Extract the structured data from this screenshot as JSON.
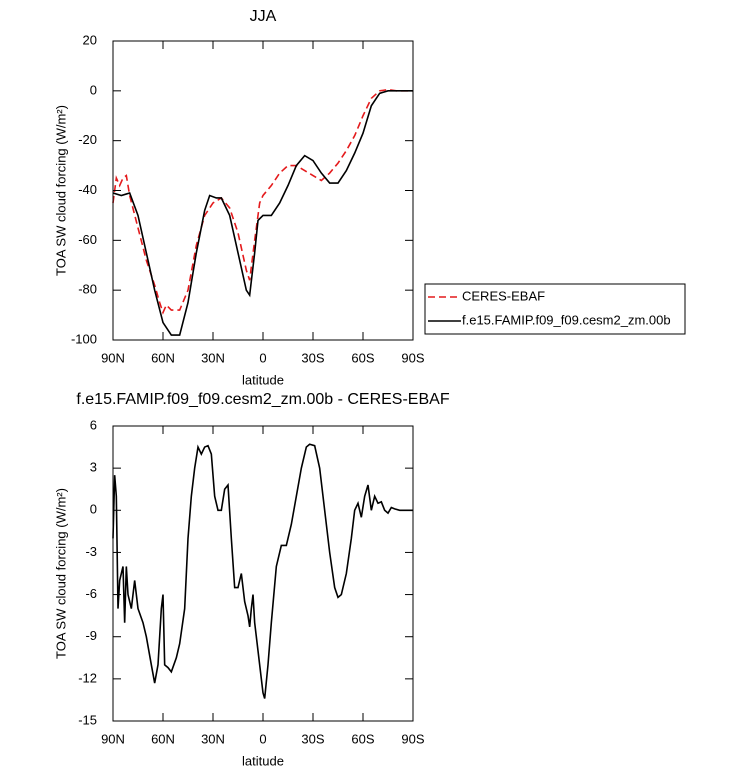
{
  "chart_data": [
    {
      "type": "line",
      "title": "JJA",
      "xlabel": "latitude",
      "ylabel": "TOA SW cloud forcing (W/m²)",
      "xlim": [
        90,
        -90
      ],
      "xticks": [
        {
          "value": 90,
          "label": "90N"
        },
        {
          "value": 60,
          "label": "60N"
        },
        {
          "value": 30,
          "label": "30N"
        },
        0,
        {
          "value": -30,
          "label": "30S"
        },
        {
          "value": -60,
          "label": "60S"
        },
        {
          "value": -90,
          "label": "90S"
        }
      ],
      "ylim": [
        -100,
        20
      ],
      "yticks": [
        20,
        0,
        -20,
        -40,
        -60,
        -80,
        -100
      ],
      "legend": "right",
      "series": [
        {
          "name": "CERES-EBAF",
          "color": "#e41a1c",
          "dash": true,
          "x": [
            90,
            88,
            86,
            84,
            82,
            80,
            75,
            70,
            65,
            62,
            60,
            58,
            55,
            50,
            45,
            40,
            35,
            30,
            25,
            20,
            15,
            10,
            8,
            5,
            2,
            0,
            -5,
            -10,
            -15,
            -20,
            -25,
            -30,
            -35,
            -40,
            -45,
            -50,
            -55,
            -60,
            -65,
            -70,
            -75,
            -80,
            -85,
            -90
          ],
          "values": [
            -45,
            -35,
            -38,
            -35,
            -34,
            -42,
            -55,
            -68,
            -78,
            -85,
            -89,
            -86,
            -88,
            -88,
            -80,
            -62,
            -50,
            -45,
            -43,
            -47,
            -57,
            -72,
            -76,
            -60,
            -45,
            -42,
            -38,
            -33,
            -30,
            -30,
            -32,
            -34,
            -36,
            -33,
            -29,
            -24,
            -18,
            -10,
            -3,
            0,
            0.5,
            0,
            0,
            0
          ]
        },
        {
          "name": "f.e15.FAMIP.f09_f09.cesm2_zm.00b",
          "color": "#000000",
          "dash": false,
          "x": [
            90,
            85,
            80,
            75,
            70,
            65,
            60,
            57,
            55,
            50,
            45,
            40,
            35,
            32,
            28,
            25,
            20,
            15,
            10,
            8,
            5,
            3,
            0,
            -5,
            -10,
            -15,
            -20,
            -25,
            -30,
            -35,
            -40,
            -45,
            -50,
            -55,
            -60,
            -65,
            -70,
            -75,
            -80,
            -85,
            -90
          ],
          "values": [
            -41,
            -42,
            -41,
            -50,
            -65,
            -80,
            -93,
            -96,
            -98,
            -98,
            -85,
            -65,
            -48,
            -42,
            -43,
            -43,
            -50,
            -65,
            -80,
            -82,
            -65,
            -52,
            -50,
            -50,
            -45,
            -38,
            -30,
            -26,
            -28,
            -33,
            -37,
            -37,
            -32,
            -25,
            -17,
            -6,
            -1,
            0,
            0,
            0,
            0
          ]
        }
      ]
    },
    {
      "type": "line",
      "title": "f.e15.FAMIP.f09_f09.cesm2_zm.00b - CERES-EBAF",
      "xlabel": "latitude",
      "ylabel": "TOA SW cloud forcing (W/m²)",
      "xlim": [
        90,
        -90
      ],
      "xticks": [
        {
          "value": 90,
          "label": "90N"
        },
        {
          "value": 60,
          "label": "60N"
        },
        {
          "value": 30,
          "label": "30N"
        },
        0,
        {
          "value": -30,
          "label": "30S"
        },
        {
          "value": -60,
          "label": "60S"
        },
        {
          "value": -90,
          "label": "90S"
        }
      ],
      "ylim": [
        -15,
        6
      ],
      "yticks": [
        6,
        3,
        0,
        -3,
        -6,
        -9,
        -12,
        -15
      ],
      "color": "#000000",
      "x": [
        90,
        89,
        88,
        87,
        86,
        84,
        83,
        82,
        81,
        79,
        77,
        75,
        72,
        70,
        67,
        65,
        63,
        61,
        60,
        59,
        57,
        55,
        52,
        50,
        47,
        45,
        43,
        41,
        39,
        37,
        35,
        33,
        31,
        29,
        27,
        25,
        23,
        21,
        19,
        17,
        15,
        13,
        11,
        9,
        8,
        7,
        6,
        5,
        3,
        1,
        0,
        -1,
        -3,
        -5,
        -8,
        -11,
        -14,
        -17,
        -20,
        -23,
        -26,
        -28,
        -31,
        -34,
        -37,
        -40,
        -43,
        -45,
        -47,
        -50,
        -53,
        -55,
        -57,
        -59,
        -61,
        -63,
        -65,
        -67,
        -69,
        -71,
        -73,
        -75,
        -77,
        -79,
        -82,
        -86,
        -90
      ],
      "values": [
        -2,
        2.5,
        1,
        -7,
        -5,
        -4,
        -8,
        -4,
        -6,
        -7,
        -5,
        -7,
        -8,
        -9,
        -11,
        -12.3,
        -11,
        -7,
        -6,
        -11,
        -11.2,
        -11.5,
        -10.5,
        -9.5,
        -7,
        -2,
        1,
        3,
        4.5,
        4,
        4.5,
        4.6,
        4,
        1,
        0,
        0,
        1.5,
        1.8,
        -2,
        -5.5,
        -5.5,
        -4.5,
        -6.5,
        -7.5,
        -8.3,
        -7,
        -6,
        -8,
        -10,
        -12,
        -13,
        -13.4,
        -11,
        -8,
        -4,
        -2.5,
        -2.5,
        -1,
        1,
        3,
        4.5,
        4.7,
        4.6,
        3,
        0,
        -3,
        -5.5,
        -6.2,
        -6,
        -4.5,
        -2,
        0,
        0.5,
        -0.5,
        1,
        1.8,
        0,
        1,
        0.5,
        0.6,
        0,
        -0.2,
        0.2,
        0.1,
        0,
        0,
        0
      ]
    }
  ]
}
